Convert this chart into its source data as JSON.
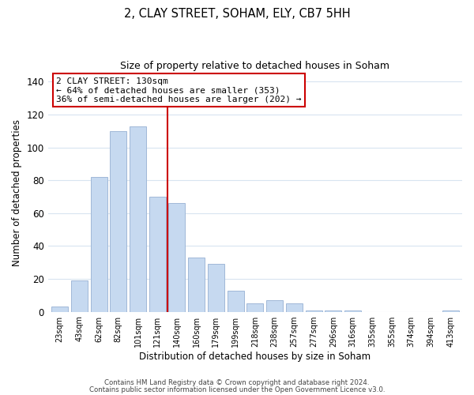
{
  "title_line1": "2, CLAY STREET, SOHAM, ELY, CB7 5HH",
  "title_line2": "Size of property relative to detached houses in Soham",
  "xlabel": "Distribution of detached houses by size in Soham",
  "ylabel": "Number of detached properties",
  "bar_labels": [
    "23sqm",
    "43sqm",
    "62sqm",
    "82sqm",
    "101sqm",
    "121sqm",
    "140sqm",
    "160sqm",
    "179sqm",
    "199sqm",
    "218sqm",
    "238sqm",
    "257sqm",
    "277sqm",
    "296sqm",
    "316sqm",
    "335sqm",
    "355sqm",
    "374sqm",
    "394sqm",
    "413sqm"
  ],
  "bar_values": [
    3,
    19,
    82,
    110,
    113,
    70,
    66,
    33,
    29,
    13,
    5,
    7,
    5,
    1,
    1,
    1,
    0,
    0,
    0,
    0,
    1
  ],
  "bar_color": "#c6d9f0",
  "bar_edge_color": "#a0b8d8",
  "vline_x_index": 6.0,
  "vline_color": "#cc0000",
  "ylim": [
    0,
    145
  ],
  "annotation_line1": "2 CLAY STREET: 130sqm",
  "annotation_line2": "← 64% of detached houses are smaller (353)",
  "annotation_line3": "36% of semi-detached houses are larger (202) →",
  "annotation_box_color": "#ffffff",
  "annotation_box_edgecolor": "#cc0000",
  "footer_line1": "Contains HM Land Registry data © Crown copyright and database right 2024.",
  "footer_line2": "Contains public sector information licensed under the Open Government Licence v3.0.",
  "background_color": "#ffffff",
  "grid_color": "#d8e4f0"
}
